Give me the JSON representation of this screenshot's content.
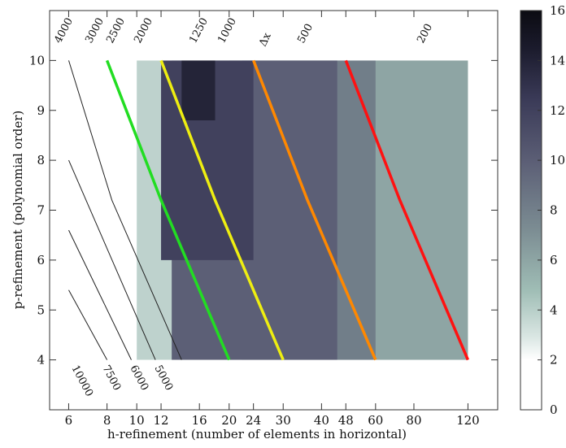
{
  "chart_data": {
    "type": "heatmap",
    "xlabel": "h-refinement (number of elements in horizontal)",
    "ylabel": "p-refinement (polynomial order)",
    "x_scale": "log",
    "xlim": [
      5.2,
      150
    ],
    "ylim": [
      3,
      11
    ],
    "x_ticks": [
      6,
      8,
      10,
      12,
      16,
      20,
      24,
      30,
      40,
      48,
      60,
      80,
      120
    ],
    "y_ticks": [
      4,
      5,
      6,
      7,
      8,
      9,
      10
    ],
    "colorbar": {
      "min": 0,
      "max": 16,
      "ticks": [
        0,
        2,
        4,
        6,
        8,
        10,
        12,
        14,
        16
      ],
      "palette": "white-to-black via grey-teal"
    },
    "top_labels": [
      "4000",
      "3000",
      "2500",
      "2000",
      "1250",
      "1000",
      "500",
      "200"
    ],
    "dx_label": "Δx",
    "bottom_labels": [
      "10000",
      "7500",
      "6000",
      "5000"
    ],
    "contour_lines": [
      {
        "name": "green",
        "color": "#22dd22",
        "points": [
          [
            8,
            10
          ],
          [
            12,
            7.2
          ],
          [
            20,
            4
          ]
        ]
      },
      {
        "name": "yellow",
        "color": "#eeee11",
        "points": [
          [
            12,
            10
          ],
          [
            18,
            7.2
          ],
          [
            30,
            4
          ]
        ]
      },
      {
        "name": "orange",
        "color": "#ff8800",
        "points": [
          [
            24,
            10
          ],
          [
            36,
            7.2
          ],
          [
            60,
            4
          ]
        ]
      },
      {
        "name": "red",
        "color": "#ff1111",
        "points": [
          [
            48,
            10
          ],
          [
            72,
            7.2
          ],
          [
            120,
            4
          ]
        ]
      }
    ],
    "thin_lines": [
      {
        "points": [
          [
            6,
            10
          ],
          [
            8.3,
            7.2
          ],
          [
            14,
            4
          ]
        ]
      },
      {
        "points": [
          [
            6,
            8
          ],
          [
            11.5,
            4
          ]
        ]
      },
      {
        "points": [
          [
            6,
            6.6
          ],
          [
            9.6,
            4
          ]
        ]
      },
      {
        "points": [
          [
            6,
            5.4
          ],
          [
            8,
            4
          ]
        ]
      }
    ],
    "region_levels": [
      {
        "level": 0,
        "x_range": [
          6,
          120
        ],
        "y_range": [
          4,
          10
        ]
      },
      {
        "level": 2,
        "x_range": [
          9,
          120
        ],
        "y_range": [
          4,
          10
        ]
      },
      {
        "level": 4,
        "x_range": [
          10,
          120
        ],
        "y_range": [
          4,
          10
        ]
      },
      {
        "level": 6,
        "x_range": [
          20,
          120
        ],
        "y_range": [
          4,
          10
        ]
      },
      {
        "level": 8,
        "x_range": [
          22,
          60
        ],
        "y_range": [
          4,
          10
        ]
      },
      {
        "level": 10,
        "x_range": [
          13,
          45
        ],
        "y_range": [
          4,
          10
        ]
      },
      {
        "level": 12,
        "x_range": [
          12,
          24
        ],
        "y_range": [
          6,
          10
        ]
      },
      {
        "level": 14,
        "x_range": [
          14,
          18
        ],
        "y_range": [
          8.8,
          10
        ]
      }
    ]
  }
}
